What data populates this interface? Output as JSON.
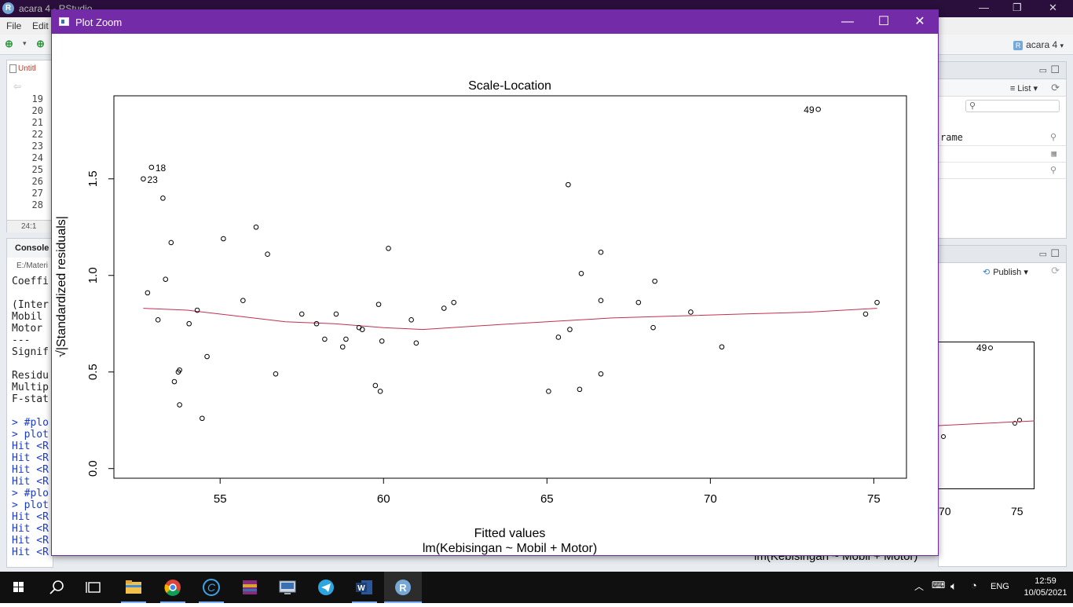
{
  "rstudio": {
    "title": "acara 4 - RStudio",
    "menu": [
      "File",
      "Edit"
    ],
    "project": "acara 4",
    "editor": {
      "tab": "Untitl",
      "line_numbers": [
        "19",
        "20",
        "21",
        "22",
        "23",
        "24",
        "25",
        "26",
        "27",
        "28"
      ],
      "cursor": "24:1"
    },
    "console": {
      "tab": "Console",
      "path": "E:/Materi",
      "lines": [
        {
          "t": "Coeffi",
          "blue": false
        },
        {
          "t": "",
          "blue": false
        },
        {
          "t": "(Inter",
          "blue": false
        },
        {
          "t": "Mobil",
          "blue": false
        },
        {
          "t": "Motor",
          "blue": false
        },
        {
          "t": "---",
          "blue": false
        },
        {
          "t": "Signif",
          "blue": false
        },
        {
          "t": "",
          "blue": false
        },
        {
          "t": "Residu",
          "blue": false
        },
        {
          "t": "Multip",
          "blue": false
        },
        {
          "t": "F-stat",
          "blue": false
        },
        {
          "t": "",
          "blue": false
        },
        {
          "t": "> #plo",
          "blue": true
        },
        {
          "t": "> plot",
          "blue": true
        },
        {
          "t": "Hit <R",
          "blue": true
        },
        {
          "t": "Hit <R",
          "blue": true
        },
        {
          "t": "Hit <R",
          "blue": true
        },
        {
          "t": "Hit <R",
          "blue": true
        },
        {
          "t": "> #plo",
          "blue": true
        },
        {
          "t": "> plot",
          "blue": true
        },
        {
          "t": "Hit <R",
          "blue": true
        },
        {
          "t": "Hit <R",
          "blue": true
        },
        {
          "t": "Hit <R",
          "blue": true
        },
        {
          "t": "Hit <R",
          "blue": true
        }
      ]
    },
    "environment": {
      "view_mode": "List",
      "rows": [
        {
          "name": "rame"
        },
        {
          "name": ""
        },
        {
          "name": ""
        }
      ]
    },
    "plots_pane": {
      "publish_label": "Publish",
      "bg_label_49": "49",
      "bg_tick_70": "70",
      "bg_tick_75": "75",
      "bg_subtitle": "lm(Kebisingan ~ Mobil + Motor)"
    }
  },
  "zoom_window": {
    "title": "Plot Zoom",
    "buttons": {
      "minimize": "—",
      "maximize": "☐",
      "close": "✕"
    }
  },
  "chart_data": {
    "type": "scatter",
    "title": "Scale-Location",
    "xlabel": "Fitted values",
    "ylabel": "√|Standardized residuals|",
    "subtitle": "lm(Kebisingan ~ Mobil + Motor)",
    "xlim": [
      51.75,
      76.0
    ],
    "ylim": [
      -0.05,
      1.93
    ],
    "xticks": [
      55,
      60,
      65,
      70,
      75
    ],
    "yticks": [
      0.0,
      0.5,
      1.0,
      1.5
    ],
    "xtick_labels": [
      "55",
      "60",
      "65",
      "70",
      "75"
    ],
    "ytick_labels": [
      "0.0",
      "0.5",
      "1.0",
      "1.5"
    ],
    "grid": false,
    "points": [
      {
        "x": 52.65,
        "y": 1.5,
        "label": "23"
      },
      {
        "x": 52.78,
        "y": 0.91
      },
      {
        "x": 52.9,
        "y": 1.56,
        "label": "18"
      },
      {
        "x": 53.1,
        "y": 0.77
      },
      {
        "x": 53.25,
        "y": 1.4
      },
      {
        "x": 53.33,
        "y": 0.98
      },
      {
        "x": 53.5,
        "y": 1.17
      },
      {
        "x": 53.6,
        "y": 0.45
      },
      {
        "x": 53.72,
        "y": 0.5
      },
      {
        "x": 53.76,
        "y": 0.51
      },
      {
        "x": 53.76,
        "y": 0.33
      },
      {
        "x": 54.05,
        "y": 0.75
      },
      {
        "x": 54.3,
        "y": 0.82
      },
      {
        "x": 54.45,
        "y": 0.26
      },
      {
        "x": 54.6,
        "y": 0.58
      },
      {
        "x": 55.1,
        "y": 1.19
      },
      {
        "x": 55.7,
        "y": 0.87
      },
      {
        "x": 56.1,
        "y": 1.25
      },
      {
        "x": 56.45,
        "y": 1.11
      },
      {
        "x": 56.7,
        "y": 0.49
      },
      {
        "x": 57.5,
        "y": 0.8
      },
      {
        "x": 57.95,
        "y": 0.75
      },
      {
        "x": 58.2,
        "y": 0.67
      },
      {
        "x": 58.55,
        "y": 0.8
      },
      {
        "x": 58.75,
        "y": 0.63
      },
      {
        "x": 58.85,
        "y": 0.67
      },
      {
        "x": 59.25,
        "y": 0.73
      },
      {
        "x": 59.35,
        "y": 0.72
      },
      {
        "x": 59.75,
        "y": 0.43
      },
      {
        "x": 59.85,
        "y": 0.85
      },
      {
        "x": 59.9,
        "y": 0.4
      },
      {
        "x": 59.95,
        "y": 0.66
      },
      {
        "x": 60.15,
        "y": 1.14
      },
      {
        "x": 60.85,
        "y": 0.77
      },
      {
        "x": 61.0,
        "y": 0.65
      },
      {
        "x": 61.85,
        "y": 0.83
      },
      {
        "x": 62.15,
        "y": 0.86
      },
      {
        "x": 65.05,
        "y": 0.4
      },
      {
        "x": 65.35,
        "y": 0.68
      },
      {
        "x": 65.65,
        "y": 1.47
      },
      {
        "x": 65.7,
        "y": 0.72
      },
      {
        "x": 66.0,
        "y": 0.41
      },
      {
        "x": 66.05,
        "y": 1.01
      },
      {
        "x": 66.65,
        "y": 1.12
      },
      {
        "x": 66.65,
        "y": 0.87
      },
      {
        "x": 66.65,
        "y": 0.49
      },
      {
        "x": 67.8,
        "y": 0.86
      },
      {
        "x": 68.25,
        "y": 0.73
      },
      {
        "x": 68.3,
        "y": 0.97
      },
      {
        "x": 69.4,
        "y": 0.81
      },
      {
        "x": 70.35,
        "y": 0.63
      },
      {
        "x": 73.3,
        "y": 1.86,
        "label": "49"
      },
      {
        "x": 74.75,
        "y": 0.8
      },
      {
        "x": 75.1,
        "y": 0.86
      }
    ],
    "smooth_line": {
      "x": [
        52.65,
        54.0,
        55.5,
        57.0,
        58.5,
        60.0,
        61.2,
        63.0,
        65.0,
        67.0,
        69.0,
        71.0,
        73.0,
        75.1
      ],
      "y": [
        0.83,
        0.82,
        0.79,
        0.76,
        0.75,
        0.73,
        0.72,
        0.74,
        0.76,
        0.78,
        0.79,
        0.8,
        0.81,
        0.83
      ],
      "color": "#c03050"
    },
    "point_color": "#000000"
  },
  "taskbar": {
    "apps": [
      {
        "name": "start-icon",
        "active": false
      },
      {
        "name": "search-icon",
        "active": false
      },
      {
        "name": "task-view-icon",
        "active": false
      },
      {
        "name": "file-explorer-icon",
        "active": false,
        "open": true
      },
      {
        "name": "chrome-icon",
        "active": false,
        "open": true
      },
      {
        "name": "ccleaner-icon",
        "active": false,
        "open": true
      },
      {
        "name": "winrar-icon",
        "active": false
      },
      {
        "name": "remote-desktop-icon",
        "active": false
      },
      {
        "name": "telegram-icon",
        "active": false
      },
      {
        "name": "word-icon",
        "active": false,
        "open": true
      },
      {
        "name": "rstudio-icon",
        "active": true
      }
    ],
    "language": "ENG",
    "time": "12:59",
    "date": "10/05/2021"
  }
}
